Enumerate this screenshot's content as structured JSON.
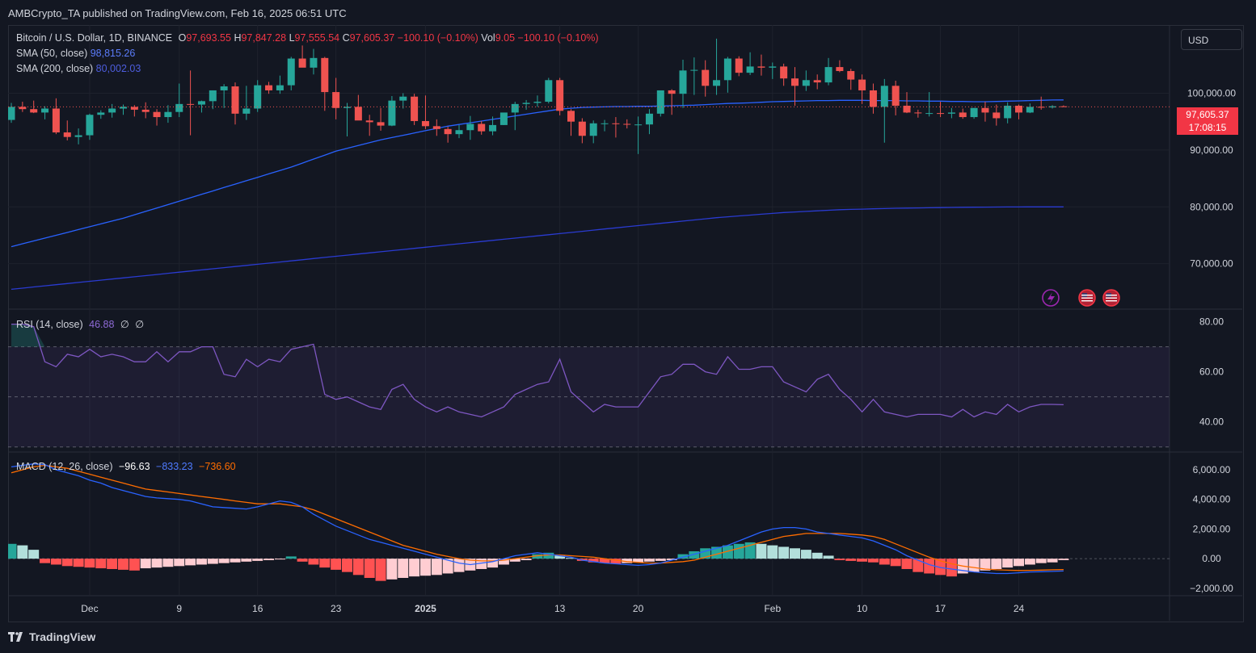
{
  "header": {
    "published": "AMBCrypto_TA published on TradingView.com, Feb 16, 2025 06:51 UTC"
  },
  "price_pane": {
    "symbol": "Bitcoin / U.S. Dollar, 1D, BINANCE",
    "o_label": "O",
    "o_value": "97,693.55",
    "h_label": "H",
    "h_value": "97,847.28",
    "l_label": "L",
    "l_value": "97,555.54",
    "c_label": "C",
    "c_value": "97,605.37",
    "change": "−100.10 (−0.10%)",
    "vol_label": "Vol",
    "vol_value": "9.05",
    "vol_change": "−100.10 (−0.10%)",
    "sma50_label": "SMA (50, close)",
    "sma50_value": "98,815.26",
    "sma200_label": "SMA (200, close)",
    "sma200_value": "80,002.03",
    "currency": "USD",
    "last_price": "97,605.37",
    "countdown": "17:08:15"
  },
  "rsi_pane": {
    "label": "RSI (14, close)",
    "value": "46.88",
    "extra1": "∅",
    "extra2": "∅"
  },
  "macd_pane": {
    "label": "MACD (12, 26, close)",
    "hist": "−96.63",
    "macd": "−833.23",
    "signal": "−736.60"
  },
  "footer": {
    "brand": "TradingView"
  },
  "colors": {
    "up": "#26a69a",
    "down": "#ef5350",
    "sma50": "#2962ff",
    "sma200": "#2a3bd1",
    "rsi": "#7e57c2",
    "macd": "#2962ff",
    "signal": "#ff6d00"
  },
  "chart_data": [
    {
      "type": "candlestick",
      "title": "Bitcoin / U.S. Dollar, 1D, BINANCE",
      "ylim": [
        62000,
        112000
      ],
      "y_ticks": [
        70000,
        80000,
        90000,
        100000
      ],
      "y_tick_labels": [
        "70,000.00",
        "80,000.00",
        "90,000.00",
        "100,000.00"
      ],
      "x_ticks": [
        {
          "day": 7,
          "label": "Dec"
        },
        {
          "day": 15,
          "label": "9"
        },
        {
          "day": 22,
          "label": "16"
        },
        {
          "day": 29,
          "label": "23"
        },
        {
          "day": 37,
          "label": "2025"
        },
        {
          "day": 49,
          "label": "13"
        },
        {
          "day": 56,
          "label": "20"
        },
        {
          "day": 68,
          "label": "Feb"
        },
        {
          "day": 76,
          "label": "10"
        },
        {
          "day": 83,
          "label": "17"
        },
        {
          "day": 90,
          "label": "24"
        }
      ],
      "ohlc": [
        [
          95300,
          98300,
          94800,
          97600
        ],
        [
          97600,
          98500,
          96700,
          97200
        ],
        [
          97200,
          98700,
          96500,
          96600
        ],
        [
          96600,
          97700,
          95400,
          97300
        ],
        [
          97300,
          99100,
          92800,
          93100
        ],
        [
          93100,
          95200,
          91700,
          92300
        ],
        [
          92300,
          93800,
          91000,
          92600
        ],
        [
          92600,
          96400,
          91800,
          96200
        ],
        [
          96200,
          97000,
          95500,
          96600
        ],
        [
          96600,
          98100,
          95700,
          97300
        ],
        [
          97300,
          98000,
          96200,
          97600
        ],
        [
          97600,
          97900,
          95900,
          97100
        ],
        [
          97100,
          98400,
          95600,
          96700
        ],
        [
          96700,
          97200,
          94300,
          95800
        ],
        [
          95800,
          97900,
          94800,
          96700
        ],
        [
          96700,
          101700,
          95800,
          98100
        ],
        [
          98100,
          104000,
          92600,
          98000
        ],
        [
          98000,
          98700,
          96600,
          98600
        ],
        [
          98600,
          100500,
          97200,
          100500
        ],
        [
          100500,
          101600,
          97400,
          101200
        ],
        [
          101200,
          101900,
          94500,
          96400
        ],
        [
          96400,
          101300,
          95300,
          97300
        ],
        [
          97300,
          102300,
          96700,
          101400
        ],
        [
          101400,
          102000,
          99900,
          100500
        ],
        [
          100500,
          103100,
          99900,
          101400
        ],
        [
          101400,
          106400,
          100500,
          106100
        ],
        [
          106100,
          108400,
          104700,
          104500
        ],
        [
          104500,
          107800,
          103300,
          106200
        ],
        [
          106200,
          106400,
          96900,
          100200
        ],
        [
          100200,
          102700,
          95400,
          97400
        ],
        [
          97400,
          98300,
          92400,
          97600
        ],
        [
          97600,
          99700,
          95600,
          95200
        ],
        [
          95200,
          96200,
          92500,
          94900
        ],
        [
          94900,
          97400,
          93400,
          94300
        ],
        [
          94300,
          99500,
          94200,
          98700
        ],
        [
          98700,
          100000,
          97300,
          99400
        ],
        [
          99400,
          99900,
          94400,
          95100
        ],
        [
          95100,
          99600,
          93700,
          94200
        ],
        [
          94200,
          95400,
          92500,
          93700
        ],
        [
          93700,
          94100,
          91300,
          92800
        ],
        [
          92800,
          94400,
          92100,
          93500
        ],
        [
          93500,
          96000,
          91800,
          94600
        ],
        [
          94600,
          95100,
          92700,
          93300
        ],
        [
          93300,
          95900,
          92600,
          94400
        ],
        [
          94400,
          96300,
          94400,
          96600
        ],
        [
          96600,
          98500,
          93500,
          98100
        ],
        [
          98100,
          98800,
          97100,
          98300
        ],
        [
          98300,
          99600,
          97600,
          98500
        ],
        [
          98500,
          102700,
          98200,
          102300
        ],
        [
          102300,
          102700,
          96100,
          96900
        ],
        [
          96900,
          97200,
          92500,
          95000
        ],
        [
          95000,
          95600,
          91200,
          92500
        ],
        [
          92500,
          95200,
          91200,
          94700
        ],
        [
          94700,
          95300,
          93300,
          94700
        ],
        [
          94700,
          95800,
          92200,
          94600
        ],
        [
          94600,
          95400,
          93800,
          94500
        ],
        [
          94500,
          95900,
          89300,
          94500
        ],
        [
          94500,
          97200,
          92800,
          96400
        ],
        [
          96400,
          100400,
          95900,
          100500
        ],
        [
          100500,
          100700,
          96200,
          99900
        ],
        [
          99900,
          105900,
          97400,
          104000
        ],
        [
          104000,
          106300,
          99700,
          104100
        ],
        [
          104100,
          105800,
          99400,
          101300
        ],
        [
          101300,
          109600,
          99700,
          102300
        ],
        [
          102300,
          106400,
          100100,
          106100
        ],
        [
          106100,
          106500,
          103000,
          103600
        ],
        [
          103600,
          107200,
          103200,
          104700
        ],
        [
          104700,
          106800,
          103100,
          104500
        ],
        [
          104500,
          105400,
          102500,
          104700
        ],
        [
          104700,
          105200,
          101300,
          102600
        ],
        [
          102600,
          104600,
          97800,
          101300
        ],
        [
          101300,
          104000,
          100400,
          102300
        ],
        [
          102300,
          103300,
          100700,
          101900
        ],
        [
          101900,
          106200,
          101400,
          104600
        ],
        [
          104600,
          105800,
          103700,
          103900
        ],
        [
          103900,
          104300,
          100600,
          102400
        ],
        [
          102400,
          103300,
          98100,
          100500
        ],
        [
          100500,
          101700,
          96400,
          97600
        ],
        [
          97600,
          102500,
          91300,
          101300
        ],
        [
          101300,
          102200,
          96100,
          97800
        ],
        [
          97800,
          100200,
          96500,
          96600
        ],
        [
          96600,
          97100,
          95700,
          96500
        ],
        [
          96500,
          100200,
          95900,
          96500
        ],
        [
          96500,
          98500,
          95800,
          96400
        ],
        [
          96400,
          97400,
          95600,
          96600
        ],
        [
          96600,
          97300,
          95500,
          95800
        ],
        [
          95800,
          97400,
          95500,
          97400
        ],
        [
          97400,
          98500,
          95000,
          96600
        ],
        [
          96600,
          98000,
          94300,
          95600
        ],
        [
          95600,
          98400,
          94700,
          97800
        ],
        [
          97800,
          98000,
          95400,
          96600
        ],
        [
          96600,
          98200,
          96500,
          97600
        ],
        [
          97600,
          99400,
          97100,
          97500
        ],
        [
          97500,
          97900,
          97300,
          97700
        ],
        [
          97700,
          97850,
          97550,
          97605
        ]
      ],
      "sma50": [
        73000,
        73500,
        74000,
        74500,
        75000,
        75500,
        76000,
        76500,
        77000,
        77500,
        78000,
        78600,
        79200,
        79800,
        80400,
        81000,
        81600,
        82200,
        82800,
        83400,
        84000,
        84600,
        85200,
        85800,
        86400,
        87000,
        87700,
        88400,
        89100,
        89800,
        90300,
        90800,
        91300,
        91800,
        92200,
        92600,
        93000,
        93400,
        93800,
        94200,
        94500,
        94800,
        95100,
        95400,
        95700,
        96000,
        96300,
        96600,
        96900,
        97200,
        97350,
        97500,
        97550,
        97600,
        97650,
        97650,
        97700,
        97700,
        97750,
        97800,
        97850,
        97900,
        98000,
        98100,
        98200,
        98250,
        98300,
        98400,
        98500,
        98550,
        98600,
        98650,
        98700,
        98700,
        98750,
        98750,
        98750,
        98700,
        98700,
        98700,
        98650,
        98650,
        98600,
        98600,
        98550,
        98550,
        98500,
        98500,
        98550,
        98600,
        98650,
        98700,
        98750,
        98800,
        98815
      ],
      "sma200": [
        65500,
        65700,
        65900,
        66100,
        66300,
        66500,
        66700,
        66900,
        67100,
        67300,
        67500,
        67700,
        67900,
        68100,
        68300,
        68500,
        68700,
        68900,
        69100,
        69300,
        69500,
        69700,
        69900,
        70100,
        70300,
        70500,
        70700,
        70900,
        71100,
        71300,
        71500,
        71700,
        71900,
        72100,
        72300,
        72500,
        72700,
        72900,
        73100,
        73300,
        73500,
        73700,
        73900,
        74100,
        74300,
        74500,
        74700,
        74900,
        75100,
        75300,
        75500,
        75700,
        75900,
        76100,
        76300,
        76500,
        76700,
        76900,
        77100,
        77300,
        77500,
        77700,
        77900,
        78100,
        78250,
        78400,
        78550,
        78700,
        78850,
        79000,
        79100,
        79200,
        79300,
        79400,
        79500,
        79550,
        79600,
        79650,
        79700,
        79750,
        79780,
        79810,
        79840,
        79870,
        79900,
        79920,
        79940,
        79960,
        79970,
        79980,
        79990,
        79995,
        80000,
        80002,
        80002
      ]
    },
    {
      "type": "line",
      "title": "RSI (14, close)",
      "ylim": [
        28,
        85
      ],
      "y_tick_labels": [
        "80.00",
        "60.00",
        "40.00"
      ],
      "y_ticks": [
        80,
        60,
        40
      ],
      "bands": [
        70,
        50,
        30
      ],
      "values": [
        79,
        79,
        78,
        64,
        62,
        67,
        66,
        69,
        66,
        67,
        66,
        64,
        64,
        68,
        64,
        68,
        68,
        70,
        70,
        59,
        58,
        65,
        62,
        65,
        64,
        69,
        70,
        71,
        51,
        49,
        50,
        48,
        46,
        45,
        53,
        55,
        49,
        46,
        44,
        46,
        44,
        43,
        42,
        44,
        46,
        51,
        53,
        55,
        56,
        65,
        52,
        48,
        44,
        47,
        46,
        46,
        46,
        52,
        58,
        59,
        63,
        63,
        60,
        59,
        66,
        61,
        61,
        62,
        62,
        56,
        54,
        52,
        57,
        59,
        53,
        49,
        44,
        49,
        44,
        43,
        42,
        43,
        43,
        43,
        42,
        45,
        42,
        44,
        43,
        47,
        44,
        46,
        47,
        47,
        46.88
      ]
    },
    {
      "type": "line+bar",
      "title": "MACD (12, 26, close)",
      "ylim": [
        -2500,
        7200
      ],
      "y_ticks": [
        6000,
        4000,
        2000,
        0,
        -2000
      ],
      "y_tick_labels": [
        "6,000.00",
        "4,000.00",
        "2,000.00",
        "0.00",
        "−2,000.00"
      ],
      "macd": [
        6200,
        6300,
        6400,
        6350,
        6000,
        5800,
        5600,
        5300,
        5100,
        4800,
        4600,
        4400,
        4200,
        4100,
        4050,
        4000,
        3900,
        3700,
        3500,
        3450,
        3400,
        3350,
        3500,
        3700,
        3900,
        3800,
        3500,
        3000,
        2600,
        2200,
        1900,
        1600,
        1300,
        1100,
        900,
        700,
        500,
        300,
        100,
        -100,
        -300,
        -400,
        -300,
        -200,
        0,
        200,
        300,
        400,
        300,
        200,
        100,
        -100,
        -200,
        -300,
        -350,
        -400,
        -450,
        -400,
        -300,
        -100,
        100,
        300,
        500,
        700,
        900,
        1200,
        1500,
        1800,
        2000,
        2100,
        2100,
        2000,
        1800,
        1700,
        1600,
        1500,
        1400,
        1200,
        900,
        600,
        200,
        -100,
        -400,
        -600,
        -700,
        -800,
        -900,
        -950,
        -1000,
        -1000,
        -950,
        -900,
        -880,
        -860,
        -833.23
      ],
      "signal": [
        5800,
        6000,
        6200,
        6300,
        6200,
        6100,
        5900,
        5700,
        5500,
        5300,
        5100,
        4900,
        4700,
        4600,
        4500,
        4400,
        4300,
        4200,
        4100,
        4000,
        3900,
        3800,
        3700,
        3700,
        3700,
        3600,
        3500,
        3300,
        3000,
        2700,
        2400,
        2100,
        1800,
        1500,
        1200,
        900,
        700,
        500,
        300,
        150,
        0,
        -100,
        -150,
        -150,
        -100,
        0,
        100,
        200,
        250,
        250,
        200,
        150,
        100,
        0,
        -100,
        -200,
        -250,
        -300,
        -300,
        -250,
        -200,
        -100,
        100,
        300,
        500,
        700,
        900,
        1100,
        1300,
        1500,
        1600,
        1700,
        1700,
        1700,
        1700,
        1650,
        1600,
        1500,
        1300,
        1000,
        700,
        400,
        100,
        -150,
        -350,
        -500,
        -600,
        -700,
        -750,
        -780,
        -800,
        -790,
        -770,
        -750,
        -736.6
      ],
      "histogram": [
        1000,
        900,
        600,
        -300,
        -400,
        -500,
        -550,
        -600,
        -650,
        -700,
        -750,
        -800,
        -650,
        -600,
        -550,
        -500,
        -450,
        -400,
        -350,
        -300,
        -250,
        -200,
        -150,
        -100,
        -50,
        150,
        -200,
        -400,
        -600,
        -750,
        -900,
        -1100,
        -1300,
        -1500,
        -1400,
        -1300,
        -1200,
        -1150,
        -1100,
        -1000,
        -900,
        -800,
        -700,
        -600,
        -400,
        -200,
        -100,
        300,
        400,
        200,
        50,
        -150,
        -250,
        -300,
        -350,
        -300,
        -250,
        -200,
        -150,
        -100,
        300,
        500,
        700,
        800,
        900,
        1000,
        1100,
        1000,
        900,
        800,
        700,
        600,
        400,
        200,
        -100,
        -150,
        -200,
        -250,
        -400,
        -500,
        -700,
        -900,
        -1000,
        -1100,
        -1200,
        -1000,
        -900,
        -800,
        -700,
        -600,
        -500,
        -400,
        -300,
        -250,
        -96.63
      ]
    }
  ]
}
